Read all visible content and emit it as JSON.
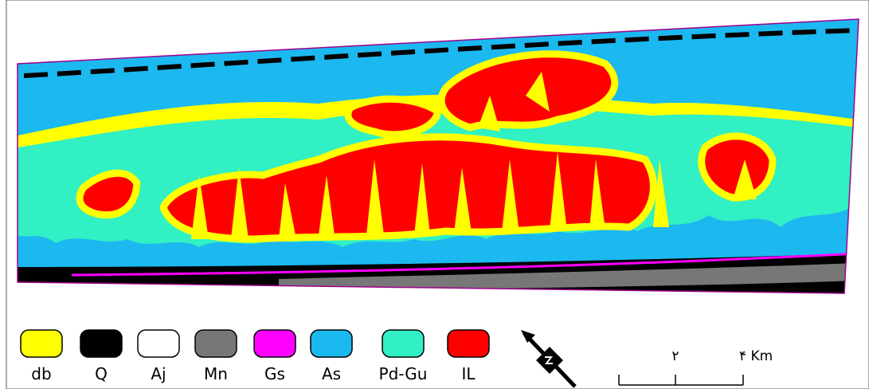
{
  "legend": {
    "items": [
      {
        "label": "db",
        "color": "#ffff00"
      },
      {
        "label": "Q",
        "color": "#000000"
      },
      {
        "label": "Aj",
        "color": "#ffffff"
      },
      {
        "label": "Mn",
        "color": "#777777"
      },
      {
        "label": "Gs",
        "color": "#ff00ff"
      },
      {
        "label": "As",
        "color": "#1cb8f0"
      },
      {
        "label": "Pd-Gu",
        "color": "#30f0c4"
      },
      {
        "label": "IL",
        "color": "#ff0000"
      }
    ]
  },
  "scale": {
    "labels": [
      "۲",
      "۴ Km"
    ]
  }
}
